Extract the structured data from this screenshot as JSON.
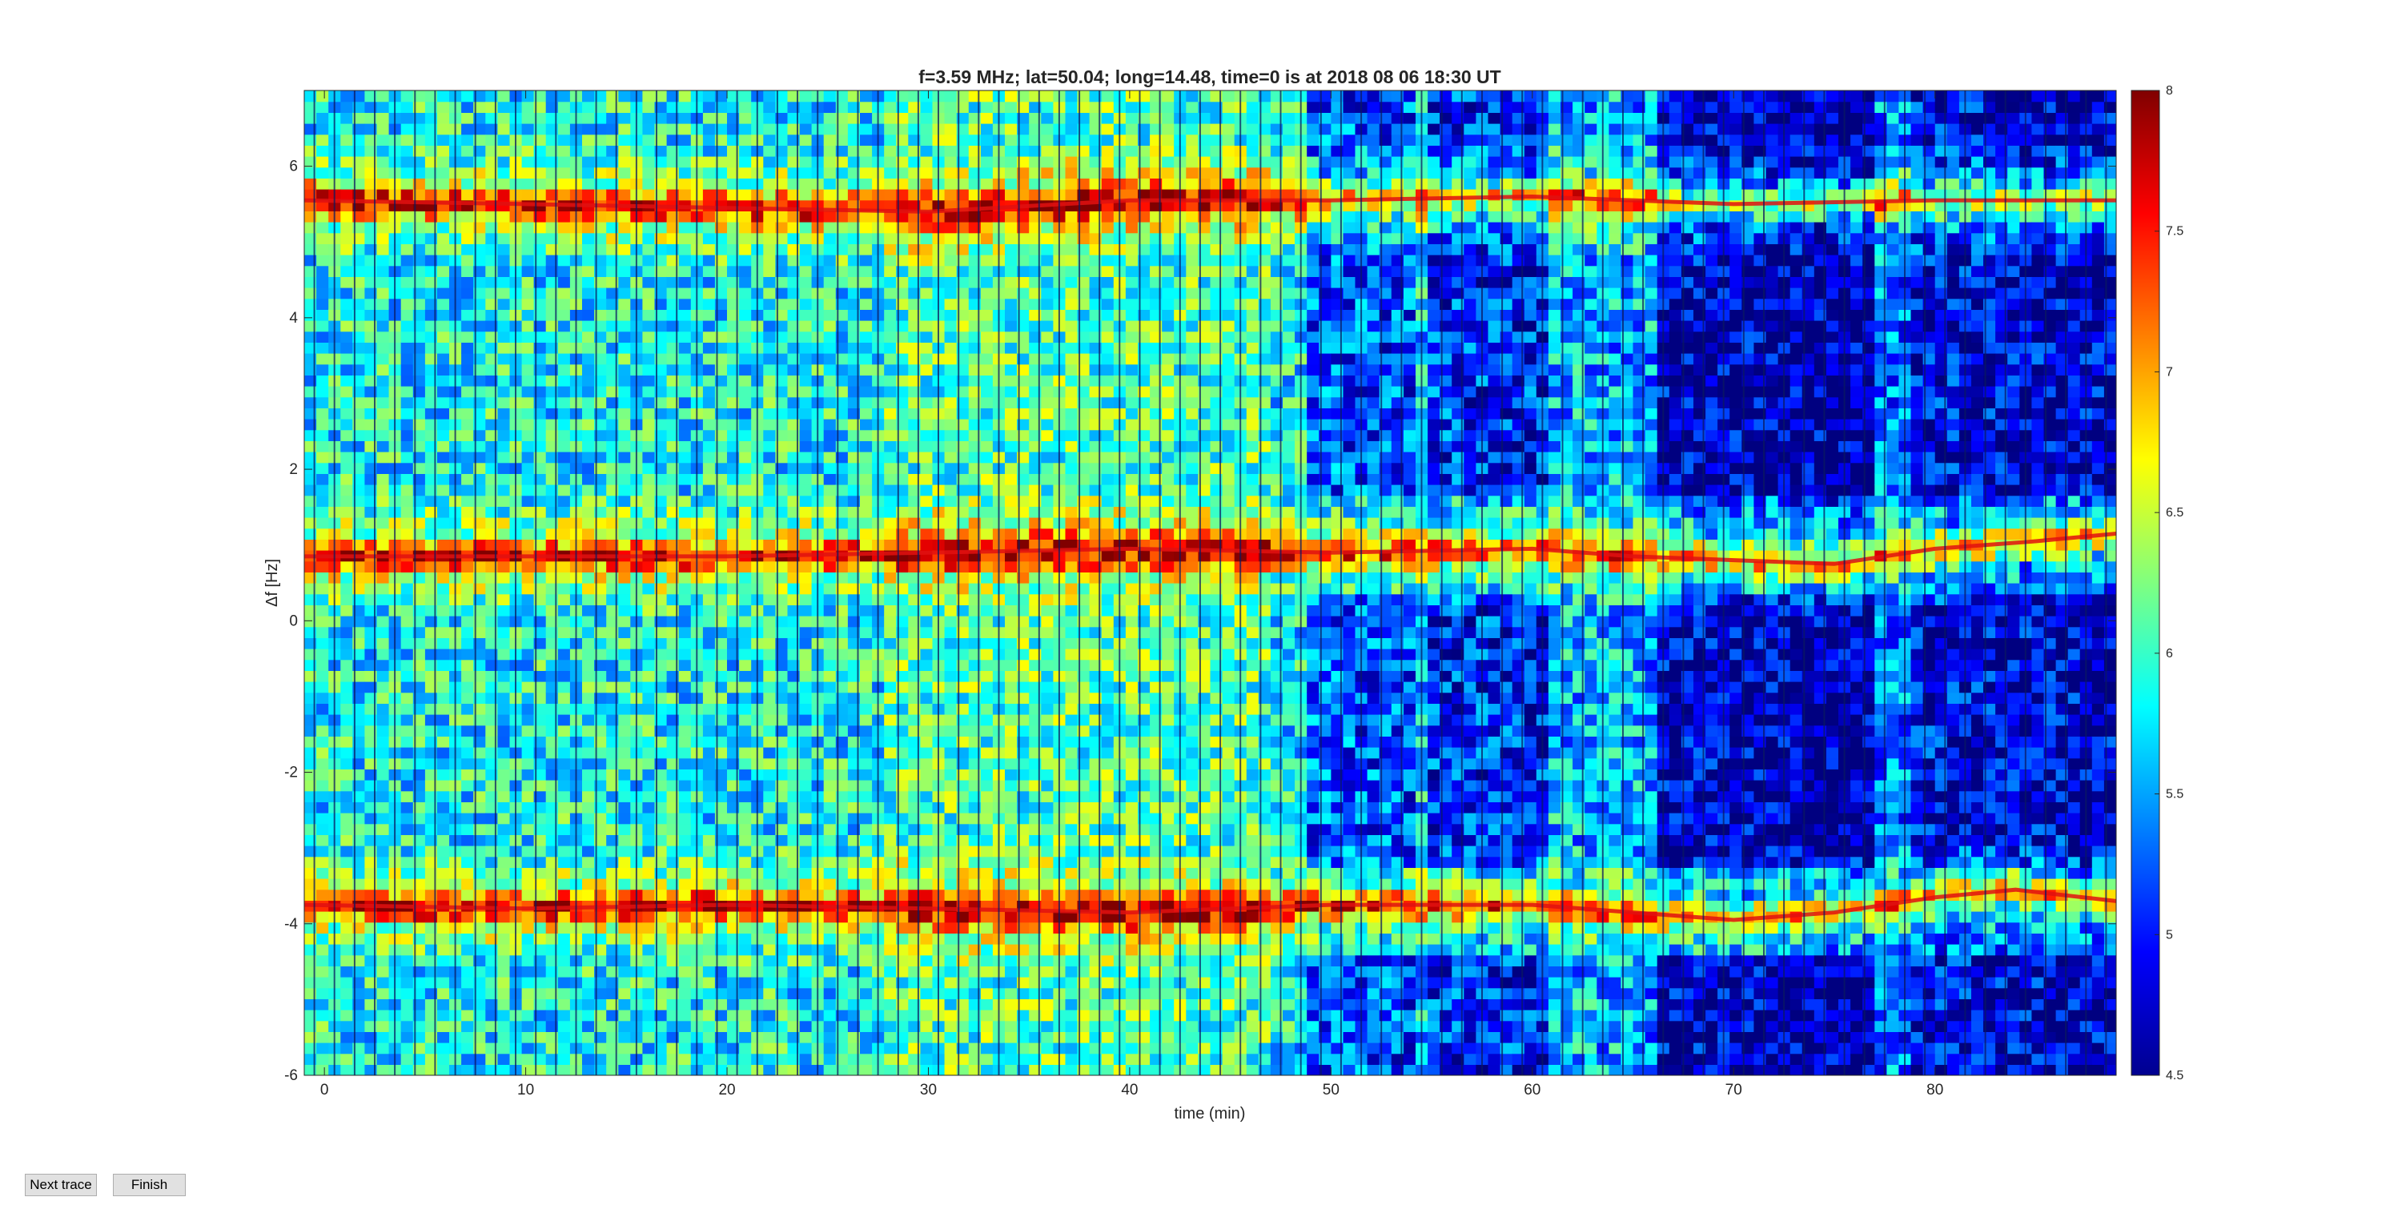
{
  "chart_data": {
    "type": "heatmap",
    "title": "f=3.59 MHz;  lat=50.04; long=14.48, time=0 is at 2018 08 06 18:30 UT",
    "xlabel": "time (min)",
    "ylabel": "Δf [Hz]",
    "xlim": [
      -1,
      89
    ],
    "ylim": [
      -6,
      7
    ],
    "x_ticks": [
      0,
      10,
      20,
      30,
      40,
      50,
      60,
      70,
      80
    ],
    "y_ticks": [
      -6,
      -4,
      -2,
      0,
      2,
      4,
      6
    ],
    "colorbar": {
      "colormap": "jet",
      "clim": [
        4.5,
        8
      ],
      "ticks": [
        4.5,
        5,
        5.5,
        6,
        6.5,
        7,
        7.5,
        8
      ]
    },
    "trace_lines": [
      {
        "points": [
          [
            -1,
            0.85
          ],
          [
            10,
            0.85
          ],
          [
            20,
            0.85
          ],
          [
            30,
            0.9
          ],
          [
            40,
            0.95
          ],
          [
            50,
            0.9
          ],
          [
            60,
            0.95
          ],
          [
            65,
            0.85
          ],
          [
            70,
            0.8
          ],
          [
            75,
            0.75
          ],
          [
            80,
            0.95
          ],
          [
            85,
            1.05
          ],
          [
            89,
            1.15
          ]
        ]
      },
      {
        "points": [
          [
            -1,
            5.55
          ],
          [
            10,
            5.5
          ],
          [
            20,
            5.45
          ],
          [
            30,
            5.4
          ],
          [
            40,
            5.55
          ],
          [
            50,
            5.55
          ],
          [
            60,
            5.6
          ],
          [
            70,
            5.5
          ],
          [
            80,
            5.55
          ],
          [
            89,
            5.55
          ]
        ]
      },
      {
        "points": [
          [
            -1,
            -3.75
          ],
          [
            10,
            -3.8
          ],
          [
            20,
            -3.75
          ],
          [
            30,
            -3.8
          ],
          [
            40,
            -3.85
          ],
          [
            50,
            -3.75
          ],
          [
            60,
            -3.75
          ],
          [
            65,
            -3.85
          ],
          [
            70,
            -3.95
          ],
          [
            75,
            -3.85
          ],
          [
            80,
            -3.65
          ],
          [
            84,
            -3.55
          ],
          [
            89,
            -3.7
          ]
        ]
      }
    ]
  },
  "buttons": {
    "next_trace_label": "Next trace",
    "finish_label": "Finish"
  }
}
